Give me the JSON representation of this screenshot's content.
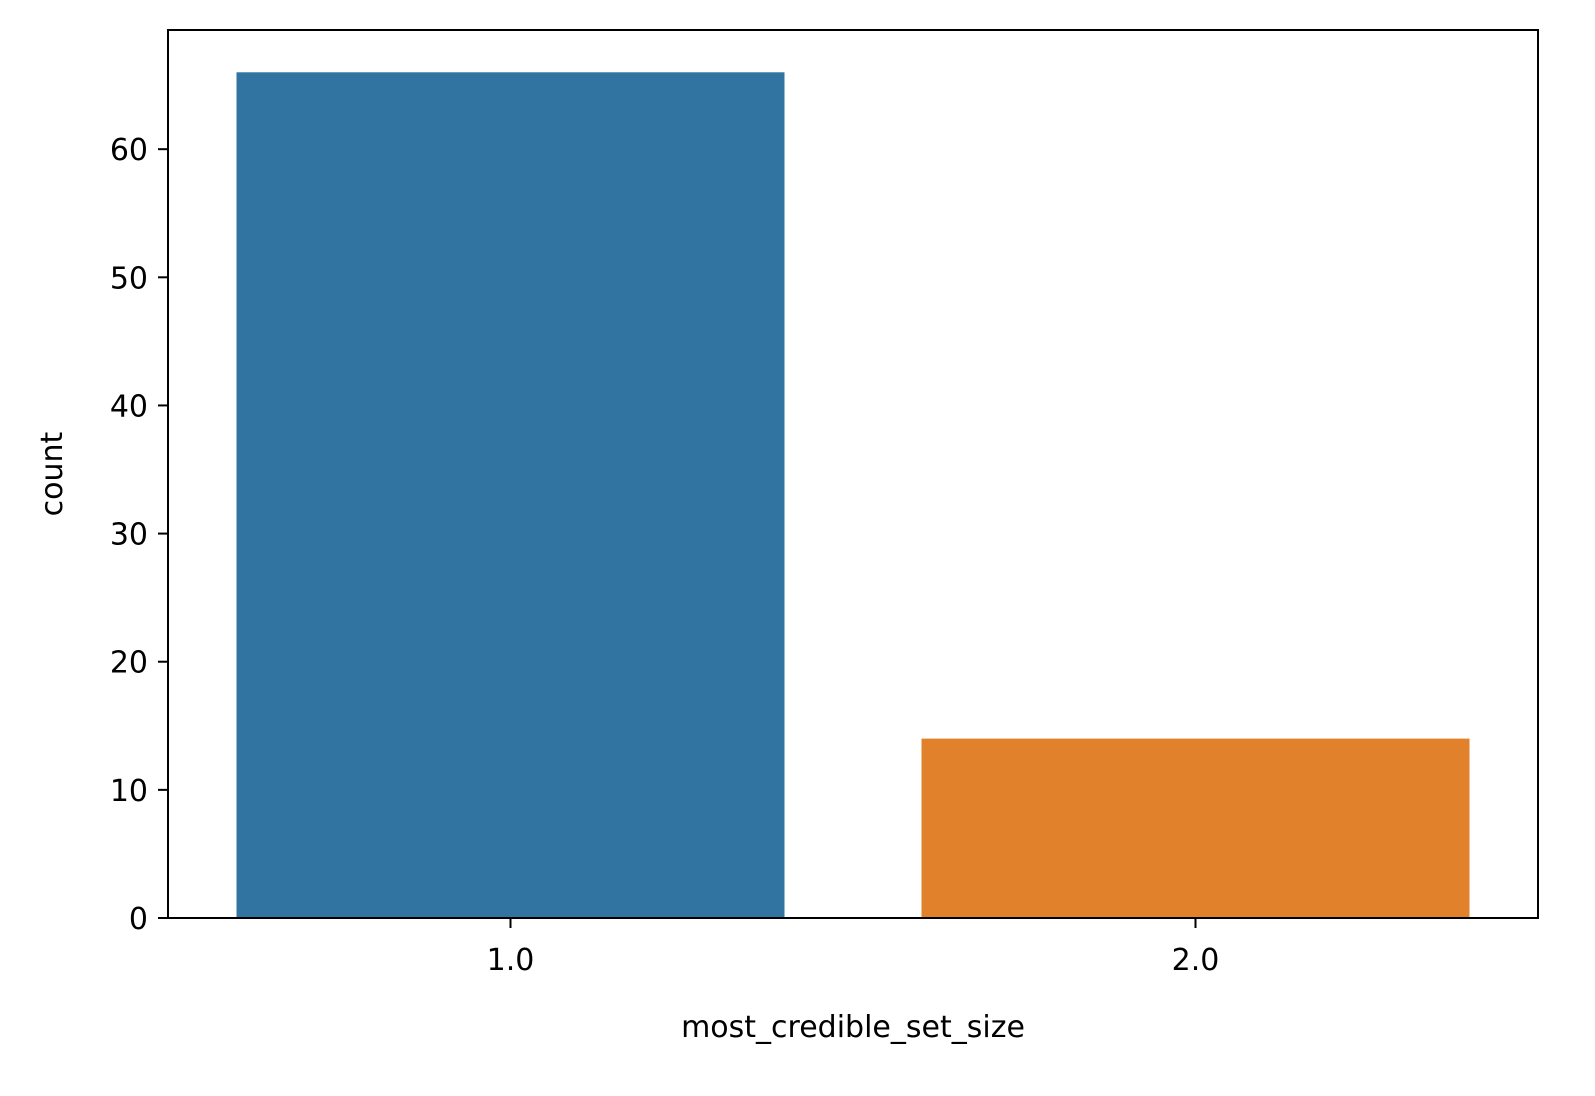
{
  "chart_data": {
    "type": "bar",
    "categories": [
      "1.0",
      "2.0"
    ],
    "values": [
      66,
      14
    ],
    "colors": [
      "#3274a1",
      "#e1812c"
    ],
    "title": "",
    "xlabel": "most_credible_set_size",
    "ylabel": "count",
    "ylim": [
      0,
      69.3
    ],
    "yticks": [
      0,
      10,
      20,
      30,
      40,
      50,
      60
    ],
    "grid": false,
    "legend": "none"
  }
}
